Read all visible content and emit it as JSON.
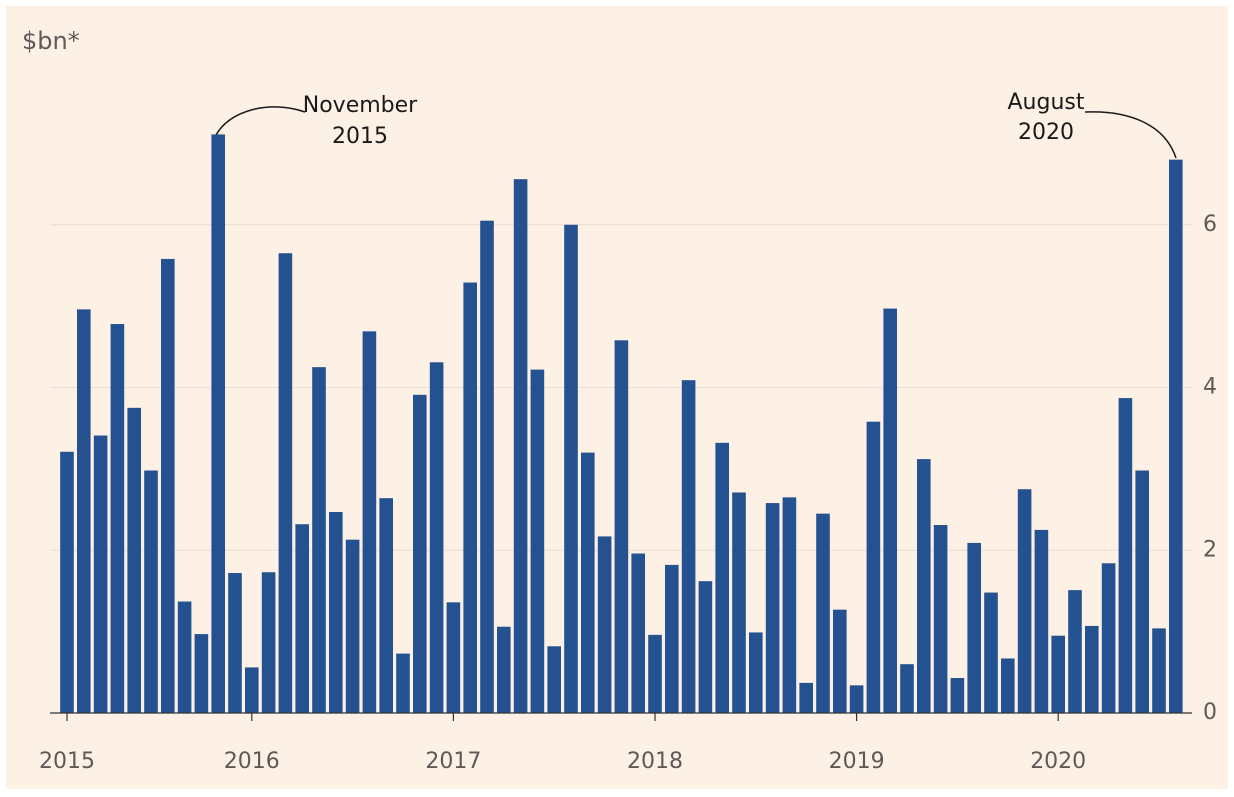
{
  "chart_data": {
    "type": "bar",
    "y_label": "$bn*",
    "annotations": [
      [
        "November",
        "2015"
      ],
      [
        "August",
        "2020"
      ]
    ],
    "categories": [
      "2015",
      null,
      null,
      null,
      null,
      null,
      null,
      null,
      null,
      null,
      null,
      "2016",
      null,
      null,
      null,
      null,
      null,
      null,
      null,
      null,
      null,
      null,
      null,
      "2017",
      null,
      null,
      null,
      null,
      null,
      null,
      null,
      null,
      null,
      null,
      null,
      "2018",
      null,
      null,
      null,
      null,
      null,
      null,
      null,
      null,
      null,
      null,
      null,
      "2019",
      null,
      null,
      null,
      null,
      null,
      null,
      null,
      null,
      null,
      null,
      null,
      "2020",
      null,
      null,
      null,
      null,
      null,
      null,
      null
    ],
    "values": [
      3.21,
      4.96,
      3.41,
      4.78,
      3.75,
      2.98,
      5.58,
      1.37,
      0.97,
      7.11,
      1.72,
      0.56,
      1.73,
      5.65,
      2.32,
      4.25,
      2.47,
      2.13,
      4.69,
      2.64,
      0.73,
      3.91,
      4.31,
      1.36,
      5.29,
      6.05,
      1.06,
      6.56,
      4.22,
      0.82,
      6.0,
      3.2,
      2.17,
      4.58,
      1.96,
      0.96,
      1.82,
      4.09,
      1.62,
      3.32,
      2.71,
      0.99,
      2.58,
      2.65,
      0.37,
      2.45,
      1.27,
      0.34,
      3.58,
      4.97,
      0.6,
      3.12,
      2.31,
      0.43,
      2.09,
      1.48,
      0.67,
      2.75,
      2.25,
      0.95,
      1.51,
      1.07,
      1.84,
      3.87,
      2.98,
      1.04,
      6.8
    ],
    "color": "#245290",
    "ylim": [
      0,
      8
    ],
    "yticks": [
      0,
      2,
      4,
      6
    ],
    "grid": true
  }
}
